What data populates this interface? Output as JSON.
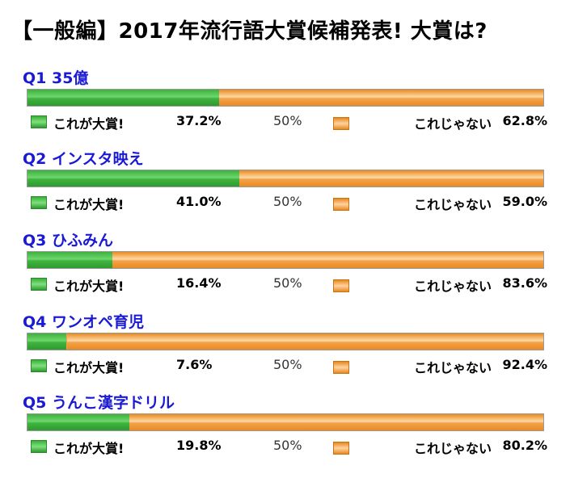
{
  "title": "【一般編】2017年流行語大賞候補発表! 大賞は?",
  "colors": {
    "yes": "#44bb44",
    "no": "#f5a040",
    "question": "#1a1ad6"
  },
  "legend": {
    "yes_label": "これが大賞!",
    "no_label": "これじゃない",
    "midpoint": "50%"
  },
  "chart_data": {
    "type": "bar",
    "title": "【一般編】2017年流行語大賞候補発表! 大賞は?",
    "orientation": "horizontal-stacked-100",
    "categories": [
      "Q1 35億",
      "Q2 インスタ映え",
      "Q3 ひふみん",
      "Q4 ワンオペ育児",
      "Q5 うんこ漢字ドリル"
    ],
    "series": [
      {
        "name": "これが大賞!",
        "values": [
          37.2,
          41.0,
          16.4,
          7.6,
          19.8
        ]
      },
      {
        "name": "これじゃない",
        "values": [
          62.8,
          59.0,
          83.6,
          92.4,
          80.2
        ]
      }
    ],
    "xlim": [
      0,
      100
    ]
  },
  "questions": [
    {
      "label": "Q1 35億",
      "yes": 37.2,
      "no": 62.8,
      "yes_text": "37.2%",
      "no_text": "62.8%"
    },
    {
      "label": "Q2 インスタ映え",
      "yes": 41.0,
      "no": 59.0,
      "yes_text": "41.0%",
      "no_text": "59.0%"
    },
    {
      "label": "Q3 ひふみん",
      "yes": 16.4,
      "no": 83.6,
      "yes_text": "16.4%",
      "no_text": "83.6%"
    },
    {
      "label": "Q4 ワンオペ育児",
      "yes": 7.6,
      "no": 92.4,
      "yes_text": "7.6%",
      "no_text": "92.4%"
    },
    {
      "label": "Q5 うんこ漢字ドリル",
      "yes": 19.8,
      "no": 80.2,
      "yes_text": "19.8%",
      "no_text": "80.2%"
    }
  ]
}
